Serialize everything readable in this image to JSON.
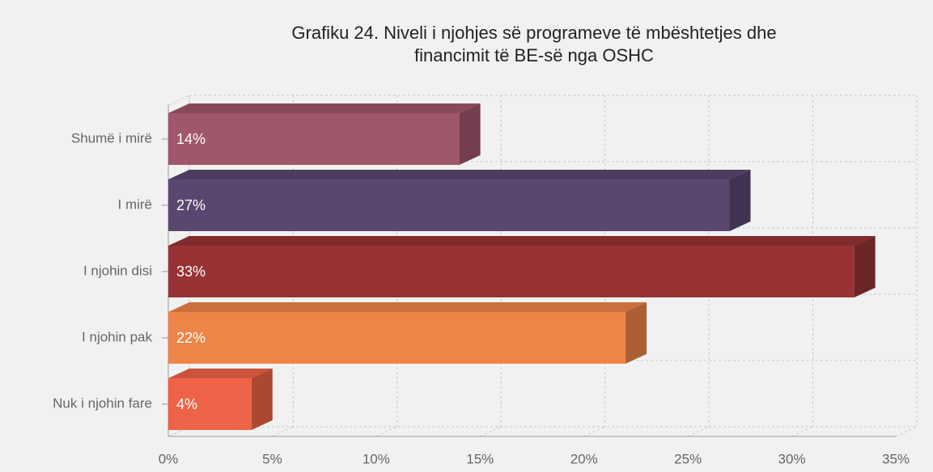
{
  "chart_data": {
    "type": "bar",
    "orientation": "horizontal",
    "title": [
      "Grafiku 24. Niveli i njohjes së programeve të mbështetjes dhe",
      "financimit të BE-së nga OSHC"
    ],
    "categories": [
      "Shumë i mirë",
      "I mirë",
      "I njohin disi",
      "I njohin pak",
      "Nuk i njohin fare"
    ],
    "values": [
      14,
      27,
      33,
      22,
      4
    ],
    "value_labels": [
      "14%",
      "27%",
      "33%",
      "22%",
      "4%"
    ],
    "colors": [
      "#a0566b",
      "#5b4670",
      "#983335",
      "#ee8447",
      "#ee6247"
    ],
    "xlim": [
      0,
      35
    ],
    "xticks": [
      {
        "value": 0,
        "label": "0%"
      },
      {
        "value": 5,
        "label": "5%"
      },
      {
        "value": 10,
        "label": "10%"
      },
      {
        "value": 15,
        "label": "15%"
      },
      {
        "value": 20,
        "label": "20%"
      },
      {
        "value": 25,
        "label": "25%"
      },
      {
        "value": 30,
        "label": "30%"
      },
      {
        "value": 35,
        "label": "35%"
      }
    ],
    "grid": true
  }
}
